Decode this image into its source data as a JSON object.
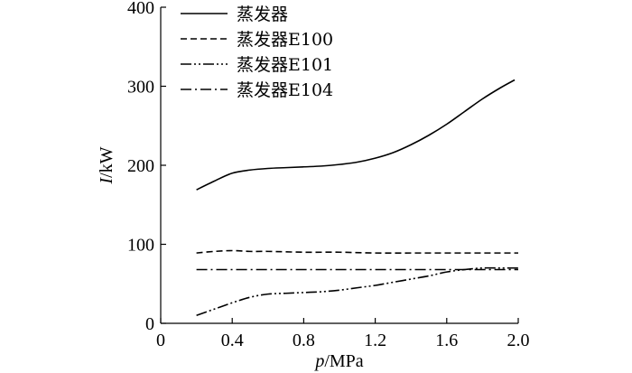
{
  "chart_data": {
    "type": "line",
    "xlabel": "p/MPa",
    "xlabel_parts": {
      "var": "p",
      "unit": "/MPa"
    },
    "ylabel": "I/kW",
    "ylabel_parts": {
      "var": "I",
      "unit": "/kW"
    },
    "xlim": [
      0,
      2.0
    ],
    "ylim": [
      0,
      400
    ],
    "xticks": [
      0,
      0.4,
      0.8,
      1.2,
      1.6,
      2.0
    ],
    "xtick_labels": [
      "0",
      "0.4",
      "0.8",
      "1.2",
      "1.6",
      "2.0"
    ],
    "yticks": [
      0,
      100,
      200,
      300,
      400
    ],
    "ytick_labels": [
      "0",
      "100",
      "200",
      "300",
      "400"
    ],
    "grid": false,
    "legend": "top-left",
    "series": [
      {
        "name": "蒸发器",
        "style": "solid",
        "points": [
          [
            0.2,
            169
          ],
          [
            0.3,
            180
          ],
          [
            0.4,
            190
          ],
          [
            0.5,
            194
          ],
          [
            0.6,
            196
          ],
          [
            0.7,
            197
          ],
          [
            0.8,
            198
          ],
          [
            0.9,
            199
          ],
          [
            1.0,
            201
          ],
          [
            1.1,
            204
          ],
          [
            1.2,
            209
          ],
          [
            1.3,
            216
          ],
          [
            1.4,
            226
          ],
          [
            1.5,
            238
          ],
          [
            1.6,
            252
          ],
          [
            1.7,
            268
          ],
          [
            1.8,
            284
          ],
          [
            1.9,
            298
          ],
          [
            1.98,
            308
          ]
        ]
      },
      {
        "name": "蒸发器E100",
        "style": "dashed",
        "points": [
          [
            0.2,
            89
          ],
          [
            0.3,
            91
          ],
          [
            0.4,
            92
          ],
          [
            0.5,
            91
          ],
          [
            0.6,
            91
          ],
          [
            0.8,
            90
          ],
          [
            1.0,
            90
          ],
          [
            1.2,
            89
          ],
          [
            1.4,
            89
          ],
          [
            1.6,
            89
          ],
          [
            1.8,
            89
          ],
          [
            2.0,
            89
          ]
        ]
      },
      {
        "name": "蒸发器E101",
        "style": "dash-dot-dot",
        "points": [
          [
            0.2,
            10
          ],
          [
            0.3,
            18
          ],
          [
            0.4,
            26
          ],
          [
            0.5,
            33
          ],
          [
            0.6,
            37
          ],
          [
            0.7,
            38
          ],
          [
            0.8,
            39
          ],
          [
            0.9,
            40
          ],
          [
            1.0,
            42
          ],
          [
            1.1,
            45
          ],
          [
            1.2,
            48
          ],
          [
            1.3,
            52
          ],
          [
            1.4,
            56
          ],
          [
            1.5,
            60
          ],
          [
            1.6,
            65
          ],
          [
            1.7,
            68
          ],
          [
            1.8,
            70
          ],
          [
            1.9,
            70
          ],
          [
            2.0,
            70
          ]
        ]
      },
      {
        "name": "蒸发器E104",
        "style": "dash-dot",
        "points": [
          [
            0.2,
            68
          ],
          [
            0.6,
            68
          ],
          [
            1.0,
            68
          ],
          [
            1.4,
            68
          ],
          [
            1.8,
            68
          ],
          [
            2.0,
            68
          ]
        ]
      }
    ]
  }
}
